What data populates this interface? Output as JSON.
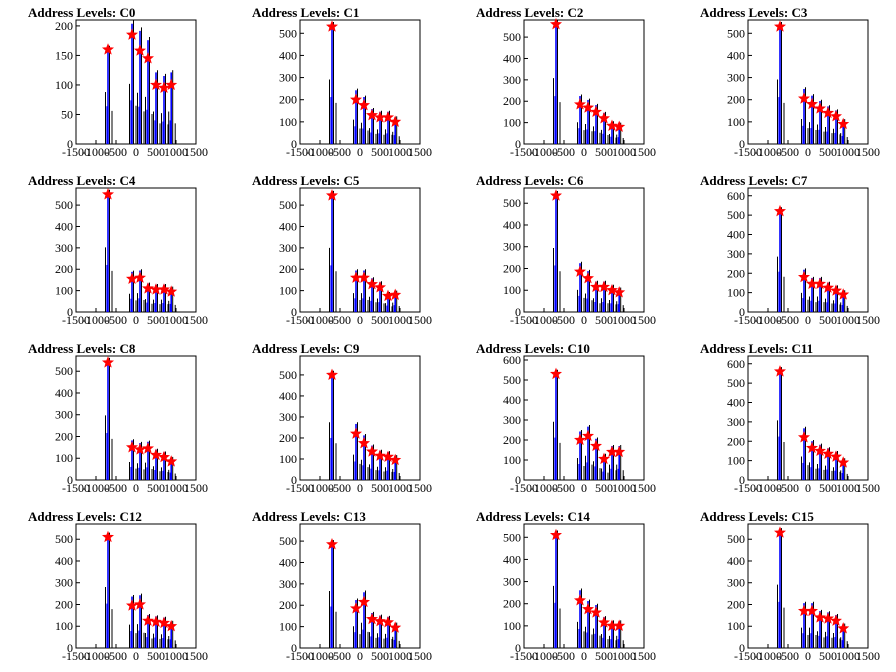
{
  "figure": {
    "background": "#ffffff",
    "line_color": "#000000",
    "histogram_color": "#0000ff",
    "marker_color": "#ff0000",
    "marker_shape": "star"
  },
  "chart_data": [
    {
      "type": "bar",
      "title": "Address Levels: C0",
      "xlim": [
        -1500,
        1500
      ],
      "ylim": [
        0,
        210
      ],
      "xticks": [
        "-1500",
        "-1000",
        "-500",
        "0",
        "500",
        "1000",
        "1500"
      ],
      "yticks": [
        "0",
        "50",
        "100",
        "150",
        "200"
      ],
      "peaks": [
        {
          "x": -700,
          "y": 160
        },
        {
          "x": -100,
          "y": 185
        },
        {
          "x": 100,
          "y": 158
        },
        {
          "x": 300,
          "y": 145
        },
        {
          "x": 500,
          "y": 100
        },
        {
          "x": 700,
          "y": 95
        },
        {
          "x": 880,
          "y": 100
        }
      ]
    },
    {
      "type": "bar",
      "title": "Address Levels: C1",
      "xlim": [
        -1500,
        1500
      ],
      "ylim": [
        0,
        560
      ],
      "xticks": [
        "-1500",
        "-1000",
        "-500",
        "0",
        "500",
        "1000",
        "1500"
      ],
      "yticks": [
        "0",
        "100",
        "200",
        "300",
        "400",
        "500"
      ],
      "peaks": [
        {
          "x": -700,
          "y": 530
        },
        {
          "x": -100,
          "y": 200
        },
        {
          "x": 100,
          "y": 175
        },
        {
          "x": 300,
          "y": 130
        },
        {
          "x": 500,
          "y": 120
        },
        {
          "x": 700,
          "y": 120
        },
        {
          "x": 880,
          "y": 100
        }
      ]
    },
    {
      "type": "bar",
      "title": "Address Levels: C2",
      "xlim": [
        -1500,
        1500
      ],
      "ylim": [
        0,
        580
      ],
      "xticks": [
        "-1500",
        "-1000",
        "-500",
        "0",
        "500",
        "1000",
        "1500"
      ],
      "yticks": [
        "0",
        "100",
        "200",
        "300",
        "400",
        "500"
      ],
      "peaks": [
        {
          "x": -700,
          "y": 560
        },
        {
          "x": -100,
          "y": 185
        },
        {
          "x": 100,
          "y": 170
        },
        {
          "x": 300,
          "y": 150
        },
        {
          "x": 500,
          "y": 120
        },
        {
          "x": 700,
          "y": 85
        },
        {
          "x": 880,
          "y": 80
        }
      ]
    },
    {
      "type": "bar",
      "title": "Address Levels: C3",
      "xlim": [
        -1500,
        1500
      ],
      "ylim": [
        0,
        560
      ],
      "xticks": [
        "-1500",
        "-1000",
        "-500",
        "0",
        "500",
        "1000",
        "1500"
      ],
      "yticks": [
        "0",
        "100",
        "200",
        "300",
        "400",
        "500"
      ],
      "peaks": [
        {
          "x": -700,
          "y": 530
        },
        {
          "x": -100,
          "y": 205
        },
        {
          "x": 100,
          "y": 180
        },
        {
          "x": 300,
          "y": 160
        },
        {
          "x": 500,
          "y": 140
        },
        {
          "x": 700,
          "y": 125
        },
        {
          "x": 880,
          "y": 90
        }
      ]
    },
    {
      "type": "bar",
      "title": "Address Levels: C4",
      "xlim": [
        -1500,
        1500
      ],
      "ylim": [
        0,
        580
      ],
      "xticks": [
        "-1500",
        "-1000",
        "-500",
        "0",
        "500",
        "1000",
        "1500"
      ],
      "yticks": [
        "0",
        "100",
        "200",
        "300",
        "400",
        "500"
      ],
      "peaks": [
        {
          "x": -700,
          "y": 550
        },
        {
          "x": -100,
          "y": 155
        },
        {
          "x": 100,
          "y": 160
        },
        {
          "x": 300,
          "y": 110
        },
        {
          "x": 500,
          "y": 105
        },
        {
          "x": 700,
          "y": 105
        },
        {
          "x": 880,
          "y": 95
        }
      ]
    },
    {
      "type": "bar",
      "title": "Address Levels: C5",
      "xlim": [
        -1500,
        1500
      ],
      "ylim": [
        0,
        580
      ],
      "xticks": [
        "-1500",
        "-1000",
        "-500",
        "0",
        "500",
        "1000",
        "1500"
      ],
      "yticks": [
        "0",
        "100",
        "200",
        "300",
        "400",
        "500"
      ],
      "peaks": [
        {
          "x": -700,
          "y": 545
        },
        {
          "x": -100,
          "y": 160
        },
        {
          "x": 100,
          "y": 160
        },
        {
          "x": 300,
          "y": 130
        },
        {
          "x": 500,
          "y": 115
        },
        {
          "x": 700,
          "y": 75
        },
        {
          "x": 880,
          "y": 80
        }
      ]
    },
    {
      "type": "bar",
      "title": "Address Levels: C6",
      "xlim": [
        -1500,
        1500
      ],
      "ylim": [
        0,
        570
      ],
      "xticks": [
        "-1500",
        "-1000",
        "-500",
        "0",
        "500",
        "1000",
        "1500"
      ],
      "yticks": [
        "0",
        "100",
        "200",
        "300",
        "400",
        "500"
      ],
      "peaks": [
        {
          "x": -700,
          "y": 535
        },
        {
          "x": -100,
          "y": 185
        },
        {
          "x": 100,
          "y": 155
        },
        {
          "x": 300,
          "y": 115
        },
        {
          "x": 500,
          "y": 115
        },
        {
          "x": 700,
          "y": 100
        },
        {
          "x": 880,
          "y": 90
        }
      ]
    },
    {
      "type": "bar",
      "title": "Address Levels: C7",
      "xlim": [
        -1500,
        1500
      ],
      "ylim": [
        0,
        640
      ],
      "xticks": [
        "-1500",
        "-1000",
        "-500",
        "0",
        "500",
        "1000",
        "1500"
      ],
      "yticks": [
        "0",
        "100",
        "200",
        "300",
        "400",
        "500",
        "600"
      ],
      "peaks": [
        {
          "x": -700,
          "y": 520
        },
        {
          "x": -100,
          "y": 180
        },
        {
          "x": 100,
          "y": 145
        },
        {
          "x": 300,
          "y": 145
        },
        {
          "x": 500,
          "y": 125
        },
        {
          "x": 700,
          "y": 110
        },
        {
          "x": 880,
          "y": 90
        }
      ]
    },
    {
      "type": "bar",
      "title": "Address Levels: C8",
      "xlim": [
        -1500,
        1500
      ],
      "ylim": [
        0,
        570
      ],
      "xticks": [
        "-1500",
        "-1000",
        "-500",
        "0",
        "500",
        "1000",
        "1500"
      ],
      "yticks": [
        "0",
        "100",
        "200",
        "300",
        "400",
        "500"
      ],
      "peaks": [
        {
          "x": -700,
          "y": 540
        },
        {
          "x": -100,
          "y": 150
        },
        {
          "x": 100,
          "y": 140
        },
        {
          "x": 300,
          "y": 145
        },
        {
          "x": 500,
          "y": 115
        },
        {
          "x": 700,
          "y": 105
        },
        {
          "x": 880,
          "y": 85
        }
      ]
    },
    {
      "type": "bar",
      "title": "Address Levels: C9",
      "xlim": [
        -1500,
        1500
      ],
      "ylim": [
        0,
        590
      ],
      "xticks": [
        "-1500",
        "-1000",
        "-500",
        "0",
        "500",
        "1000",
        "1500"
      ],
      "yticks": [
        "0",
        "100",
        "200",
        "300",
        "400",
        "500"
      ],
      "peaks": [
        {
          "x": -700,
          "y": 500
        },
        {
          "x": -100,
          "y": 220
        },
        {
          "x": 100,
          "y": 175
        },
        {
          "x": 300,
          "y": 135
        },
        {
          "x": 500,
          "y": 115
        },
        {
          "x": 700,
          "y": 110
        },
        {
          "x": 880,
          "y": 95
        }
      ]
    },
    {
      "type": "bar",
      "title": "Address Levels: C10",
      "xlim": [
        -1500,
        1500
      ],
      "ylim": [
        0,
        620
      ],
      "xticks": [
        "-1500",
        "-1000",
        "-500",
        "0",
        "500",
        "1000",
        "1500"
      ],
      "yticks": [
        "0",
        "100",
        "200",
        "300",
        "400",
        "500",
        "600"
      ],
      "peaks": [
        {
          "x": -700,
          "y": 530
        },
        {
          "x": -100,
          "y": 200
        },
        {
          "x": 100,
          "y": 220
        },
        {
          "x": 300,
          "y": 170
        },
        {
          "x": 500,
          "y": 105
        },
        {
          "x": 700,
          "y": 140
        },
        {
          "x": 880,
          "y": 140
        }
      ]
    },
    {
      "type": "bar",
      "title": "Address Levels: C11",
      "xlim": [
        -1500,
        1500
      ],
      "ylim": [
        0,
        640
      ],
      "xticks": [
        "-1500",
        "-1000",
        "-500",
        "0",
        "500",
        "1000",
        "1500"
      ],
      "yticks": [
        "0",
        "100",
        "200",
        "300",
        "400",
        "500",
        "600"
      ],
      "peaks": [
        {
          "x": -700,
          "y": 560
        },
        {
          "x": -100,
          "y": 220
        },
        {
          "x": 100,
          "y": 165
        },
        {
          "x": 300,
          "y": 150
        },
        {
          "x": 500,
          "y": 135
        },
        {
          "x": 700,
          "y": 120
        },
        {
          "x": 880,
          "y": 90
        }
      ]
    },
    {
      "type": "bar",
      "title": "Address Levels: C12",
      "xlim": [
        -1500,
        1500
      ],
      "ylim": [
        0,
        570
      ],
      "xticks": [
        "-1500",
        "-1000",
        "-500",
        "0",
        "500",
        "1000",
        "1500"
      ],
      "yticks": [
        "0",
        "100",
        "200",
        "300",
        "400",
        "500"
      ],
      "peaks": [
        {
          "x": -700,
          "y": 510
        },
        {
          "x": -100,
          "y": 195
        },
        {
          "x": 100,
          "y": 200
        },
        {
          "x": 300,
          "y": 125
        },
        {
          "x": 500,
          "y": 120
        },
        {
          "x": 700,
          "y": 115
        },
        {
          "x": 880,
          "y": 100
        }
      ]
    },
    {
      "type": "bar",
      "title": "Address Levels: C13",
      "xlim": [
        -1500,
        1500
      ],
      "ylim": [
        0,
        580
      ],
      "xticks": [
        "-1500",
        "-1000",
        "-500",
        "0",
        "500",
        "1000",
        "1500"
      ],
      "yticks": [
        "0",
        "100",
        "200",
        "300",
        "400",
        "500"
      ],
      "peaks": [
        {
          "x": -700,
          "y": 485
        },
        {
          "x": -100,
          "y": 185
        },
        {
          "x": 100,
          "y": 215
        },
        {
          "x": 300,
          "y": 135
        },
        {
          "x": 500,
          "y": 125
        },
        {
          "x": 700,
          "y": 120
        },
        {
          "x": 880,
          "y": 95
        }
      ]
    },
    {
      "type": "bar",
      "title": "Address Levels: C14",
      "xlim": [
        -1500,
        1500
      ],
      "ylim": [
        0,
        560
      ],
      "xticks": [
        "-1500",
        "-1000",
        "-500",
        "0",
        "500",
        "1000",
        "1500"
      ],
      "yticks": [
        "0",
        "100",
        "200",
        "300",
        "400",
        "500"
      ],
      "peaks": [
        {
          "x": -700,
          "y": 510
        },
        {
          "x": -100,
          "y": 215
        },
        {
          "x": 100,
          "y": 175
        },
        {
          "x": 300,
          "y": 160
        },
        {
          "x": 500,
          "y": 115
        },
        {
          "x": 700,
          "y": 100
        },
        {
          "x": 880,
          "y": 100
        }
      ]
    },
    {
      "type": "bar",
      "title": "Address Levels: C15",
      "xlim": [
        -1500,
        1500
      ],
      "ylim": [
        0,
        570
      ],
      "xticks": [
        "-1500",
        "-1000",
        "-500",
        "0",
        "500",
        "1000",
        "1500"
      ],
      "yticks": [
        "0",
        "100",
        "200",
        "300",
        "400",
        "500"
      ],
      "peaks": [
        {
          "x": -700,
          "y": 530
        },
        {
          "x": -100,
          "y": 170
        },
        {
          "x": 100,
          "y": 170
        },
        {
          "x": 300,
          "y": 140
        },
        {
          "x": 500,
          "y": 135
        },
        {
          "x": 700,
          "y": 125
        },
        {
          "x": 880,
          "y": 90
        }
      ]
    }
  ]
}
